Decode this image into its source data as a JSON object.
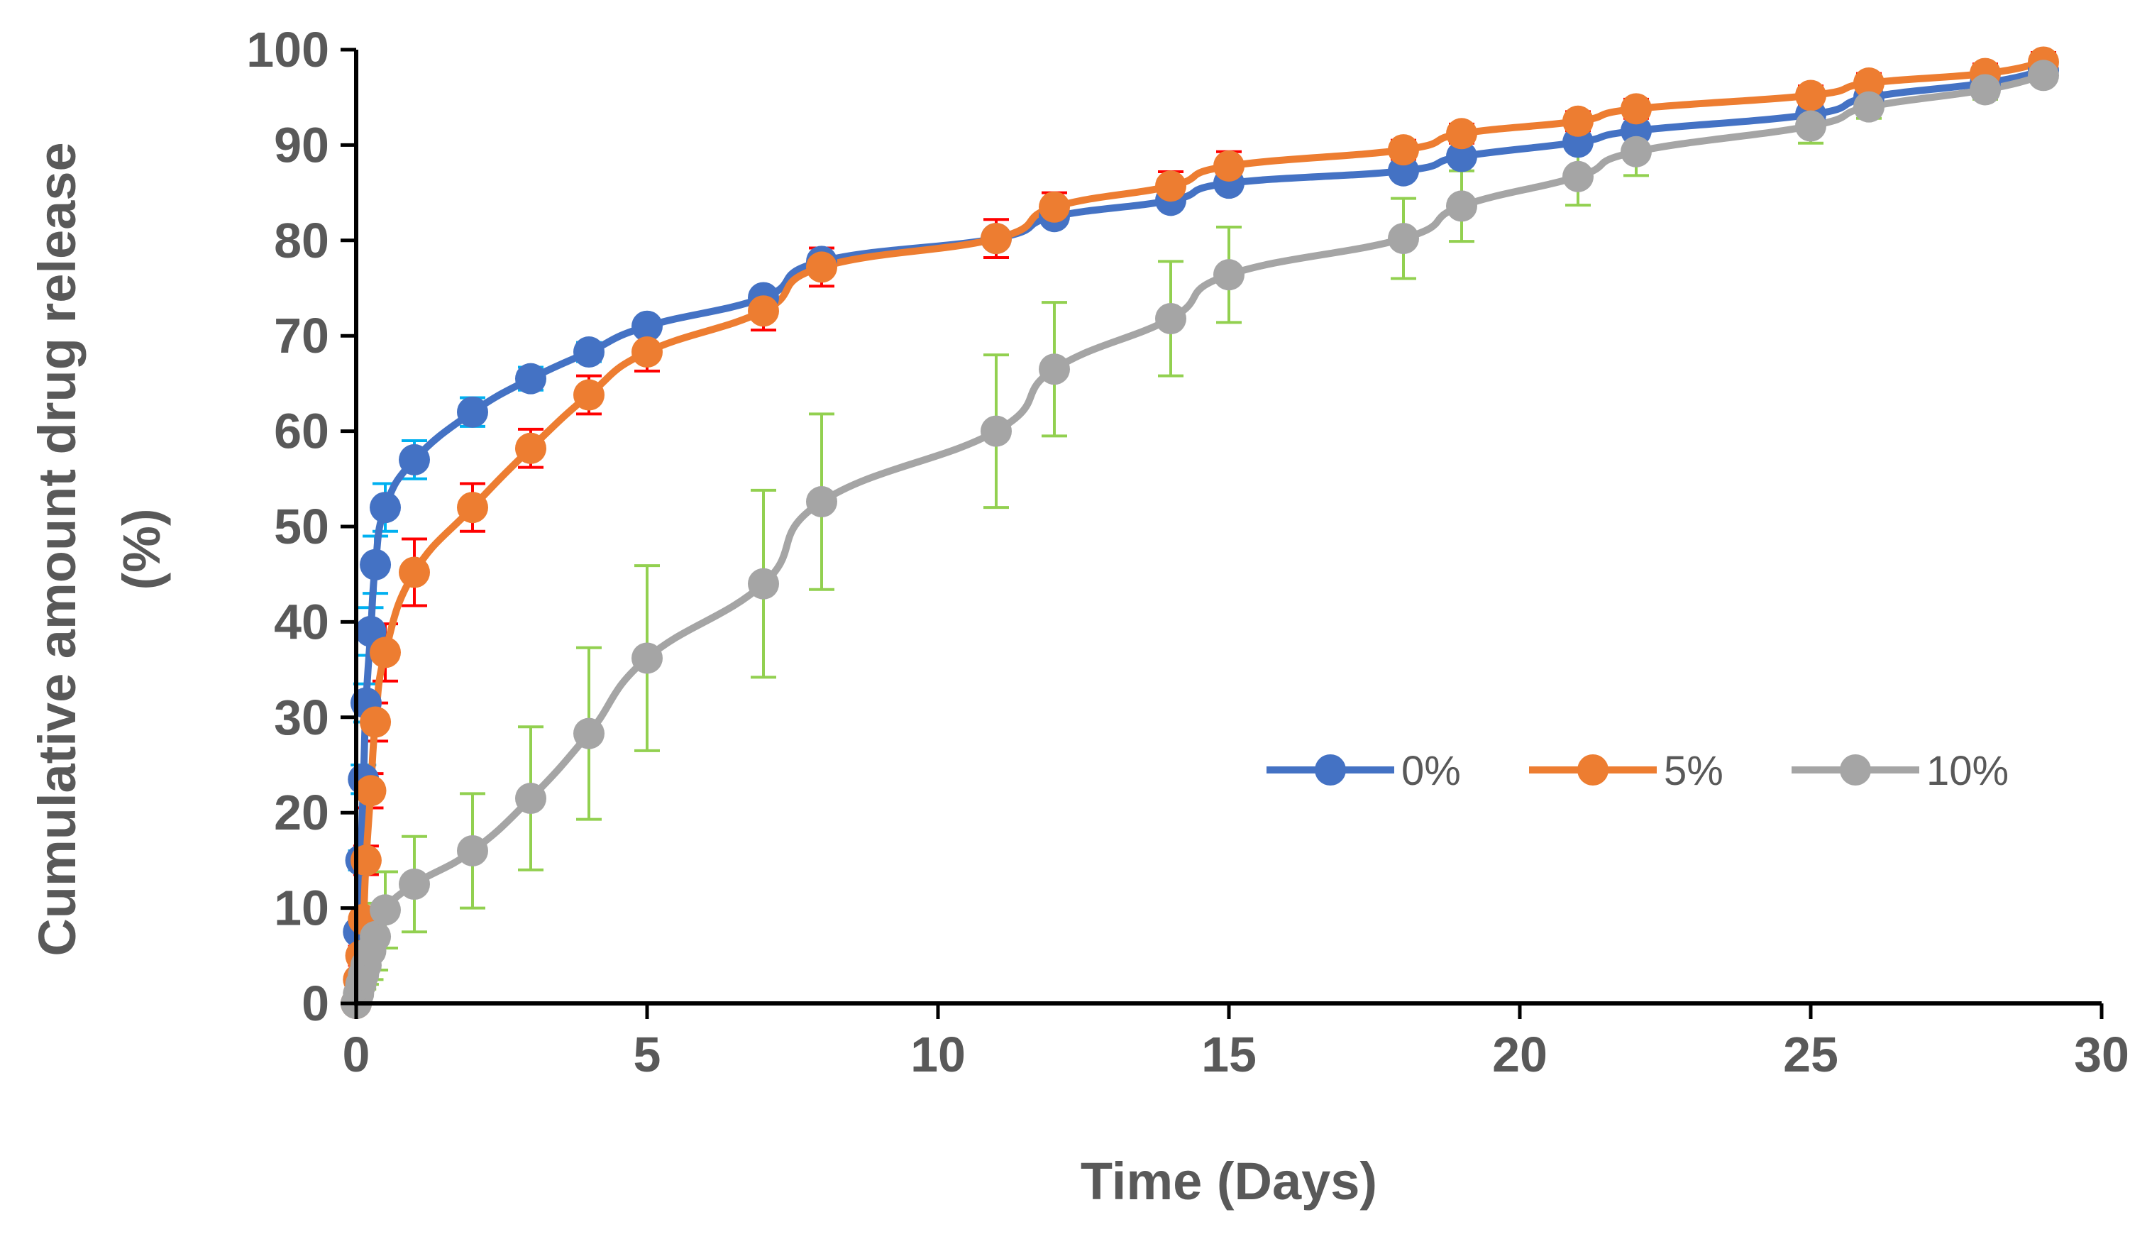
{
  "chart_data": {
    "type": "line",
    "title": "",
    "xlabel": "Time (Days)",
    "ylabel_line1": "Cumulative amount drug release",
    "ylabel_line2": "(%)",
    "xlim": [
      0,
      30
    ],
    "ylim": [
      0,
      100
    ],
    "x_ticks": [
      0,
      5,
      10,
      15,
      20,
      25,
      30
    ],
    "y_ticks": [
      0,
      10,
      20,
      30,
      40,
      50,
      60,
      70,
      80,
      90,
      100
    ],
    "grid": false,
    "legend_position": "center-right",
    "series": [
      {
        "name": "0%",
        "color": "#4472C4",
        "error_color": "#00B0F0",
        "x": [
          0,
          0.04,
          0.08,
          0.125,
          0.17,
          0.25,
          0.33,
          0.5,
          1,
          2,
          3,
          4,
          5,
          7,
          8,
          11,
          12,
          14,
          15,
          18,
          19,
          21,
          22,
          25,
          26,
          28,
          29
        ],
        "y": [
          0,
          7.5,
          15,
          23.5,
          31.5,
          39,
          46,
          52,
          57,
          62,
          65.5,
          68.3,
          71,
          74,
          77.8,
          80.2,
          82.5,
          84.2,
          86,
          87.3,
          88.8,
          90.3,
          91.5,
          93.2,
          95,
          96.5,
          97.8
        ],
        "err": [
          0,
          0.5,
          1,
          1.5,
          2,
          2.5,
          3,
          2.5,
          2,
          1.5,
          1.2,
          1,
          0.8,
          0.8,
          0.8,
          0.8,
          0.8,
          0.8,
          0.8,
          0.8,
          0.8,
          0.8,
          0.8,
          0.8,
          0.8,
          0.8,
          0.8
        ]
      },
      {
        "name": "5%",
        "color": "#ED7D31",
        "error_color": "#FF0000",
        "x": [
          0,
          0.04,
          0.08,
          0.125,
          0.17,
          0.25,
          0.33,
          0.5,
          1,
          2,
          3,
          4,
          5,
          7,
          8,
          11,
          12,
          14,
          15,
          18,
          19,
          21,
          22,
          25,
          26,
          28,
          29
        ],
        "y": [
          0,
          2.5,
          5,
          8.8,
          15,
          22.3,
          29.5,
          36.8,
          45.2,
          52,
          58.2,
          63.8,
          68.3,
          72.6,
          77.2,
          80.2,
          83.5,
          85.7,
          87.8,
          89.5,
          91.2,
          92.5,
          93.8,
          95.2,
          96.5,
          97.5,
          98.7
        ],
        "err": [
          0,
          0.5,
          1,
          1.2,
          1.5,
          1.8,
          2,
          3,
          3.5,
          2.5,
          2,
          2,
          2,
          2,
          2,
          2,
          1.5,
          1.5,
          1.5,
          1,
          1,
          1,
          1,
          1,
          1,
          1,
          1
        ]
      },
      {
        "name": "10%",
        "color": "#A5A5A5",
        "error_color": "#92D050",
        "x": [
          0,
          0.04,
          0.08,
          0.125,
          0.17,
          0.25,
          0.33,
          0.5,
          1,
          2,
          3,
          4,
          5,
          7,
          8,
          11,
          12,
          14,
          15,
          18,
          19,
          21,
          22,
          25,
          26,
          28,
          29
        ],
        "y": [
          0,
          1,
          2,
          3,
          4,
          5.5,
          7,
          9.8,
          12.5,
          16,
          21.5,
          28.3,
          36.2,
          44,
          52.6,
          60,
          66.5,
          71.8,
          76.4,
          80.2,
          83.6,
          86.7,
          89.3,
          92,
          94,
          95.8,
          97.3
        ],
        "err": [
          0,
          0.5,
          1,
          1.5,
          2,
          3,
          3.5,
          4,
          5,
          6,
          7.5,
          9,
          9.7,
          9.8,
          9.2,
          8,
          7,
          6,
          5,
          4.2,
          3.7,
          3,
          2.5,
          1.8,
          1.2,
          1,
          0.8
        ]
      }
    ]
  }
}
